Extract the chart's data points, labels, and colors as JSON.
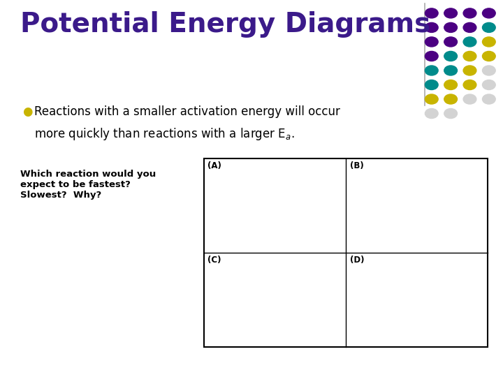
{
  "title": "Potential Energy Diagrams",
  "title_color": "#3b1a8a",
  "title_fontsize": 28,
  "bullet_text_line1": "Reactions with a smaller activation energy will occur",
  "bullet_text_line2": "more quickly than reactions with a larger E",
  "bullet_color": "#c8b400",
  "text_color": "#000000",
  "bg_color": "#ffffff",
  "dot_rows": [
    [
      "#4b0082",
      "#4b0082",
      "#4b0082",
      "#4b0082"
    ],
    [
      "#4b0082",
      "#4b0082",
      "#4b0082",
      "#008b8b"
    ],
    [
      "#4b0082",
      "#4b0082",
      "#008b8b",
      "#c8b400"
    ],
    [
      "#4b0082",
      "#008b8b",
      "#c8b400",
      "#c8b400"
    ],
    [
      "#008b8b",
      "#008b8b",
      "#c8b400",
      "#d3d3d3"
    ],
    [
      "#008b8b",
      "#c8b400",
      "#c8b400",
      "#d3d3d3"
    ],
    [
      "#c8b400",
      "#c8b400",
      "#d3d3d3",
      "#d3d3d3"
    ],
    [
      "#d3d3d3",
      "#d3d3d3"
    ]
  ],
  "subplot_labels": [
    "(A)",
    "(B)",
    "(C)",
    "(D)"
  ],
  "curve_color": "#000000"
}
